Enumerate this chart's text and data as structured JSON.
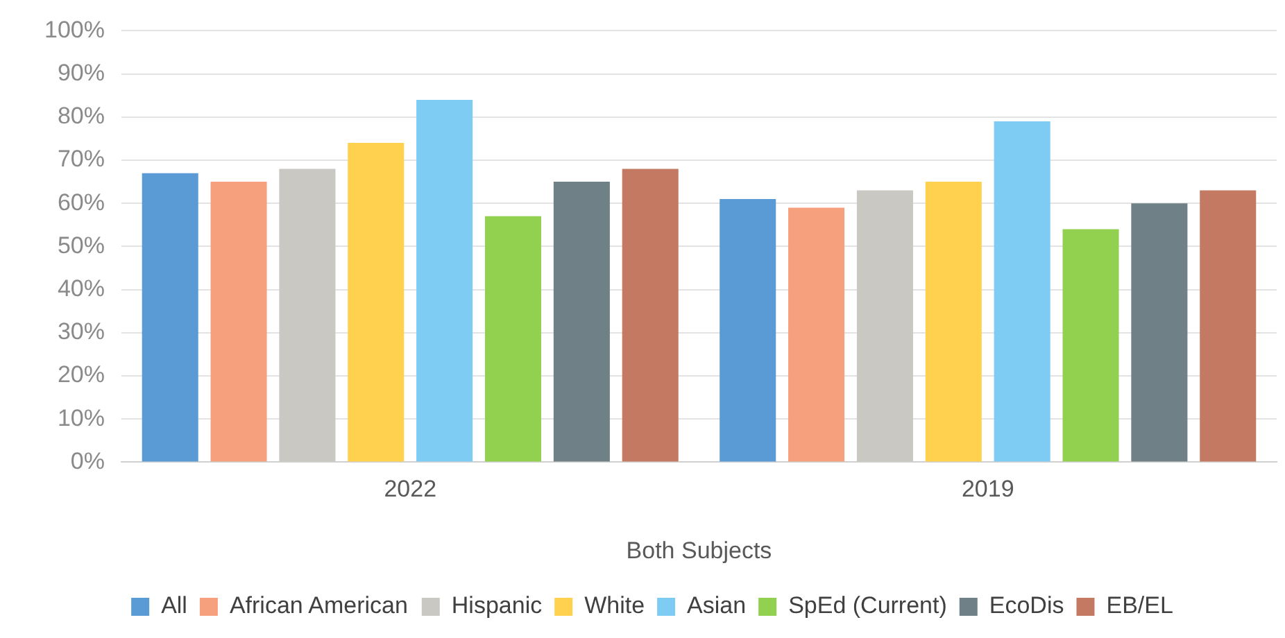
{
  "chart_data": {
    "type": "bar",
    "xlabel": "Both Subjects",
    "categories": [
      "2022",
      "2019"
    ],
    "series": [
      {
        "name": "All",
        "color": "#5b9bd5",
        "values": [
          67,
          61
        ]
      },
      {
        "name": "African American",
        "color": "#f7a07e",
        "values": [
          65,
          59
        ]
      },
      {
        "name": "Hispanic",
        "color": "#c9c8c2",
        "values": [
          68,
          63
        ]
      },
      {
        "name": "White",
        "color": "#ffd14f",
        "values": [
          74,
          65
        ]
      },
      {
        "name": "Asian",
        "color": "#7ecbf3",
        "values": [
          84,
          79
        ]
      },
      {
        "name": "SpEd (Current)",
        "color": "#92d050",
        "values": [
          57,
          54
        ]
      },
      {
        "name": "EcoDis",
        "color": "#6f8086",
        "values": [
          65,
          60
        ]
      },
      {
        "name": "EB/EL",
        "color": "#c47a62",
        "values": [
          68,
          63
        ]
      }
    ],
    "ylim": [
      0,
      100
    ],
    "yticks": [
      {
        "value": 0,
        "label": "0%"
      },
      {
        "value": 10,
        "label": "10%"
      },
      {
        "value": 20,
        "label": "20%"
      },
      {
        "value": 30,
        "label": "30%"
      },
      {
        "value": 40,
        "label": "40%"
      },
      {
        "value": 50,
        "label": "50%"
      },
      {
        "value": 60,
        "label": "60%"
      },
      {
        "value": 70,
        "label": "70%"
      },
      {
        "value": 80,
        "label": "80%"
      },
      {
        "value": 90,
        "label": "90%"
      },
      {
        "value": 100,
        "label": "100%"
      }
    ],
    "grid": "y",
    "legend": "bottom"
  }
}
